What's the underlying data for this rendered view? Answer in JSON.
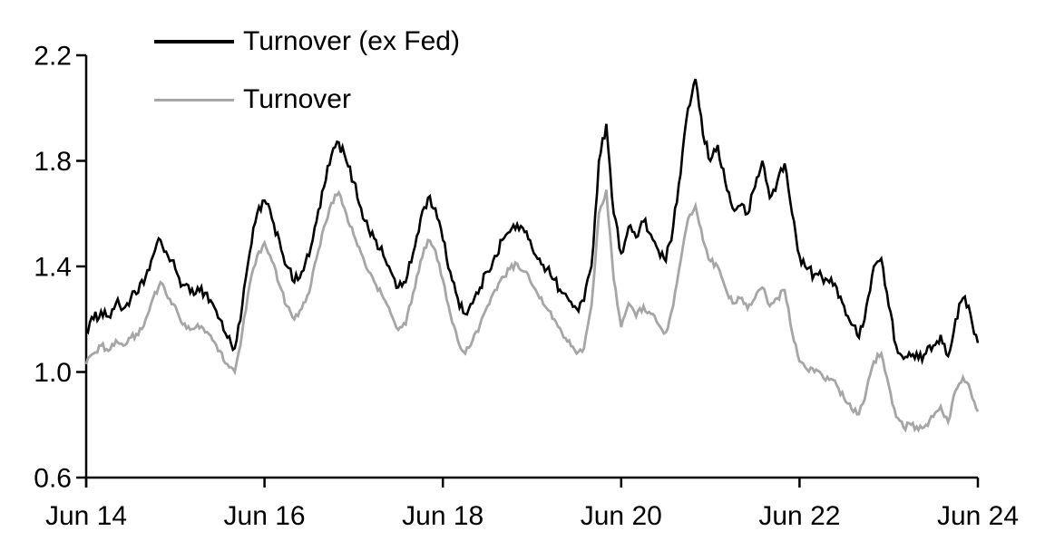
{
  "chart_data": {
    "type": "line",
    "title": "",
    "x_tick_labels": [
      "Jun 14",
      "Jun 16",
      "Jun 18",
      "Jun 20",
      "Jun 22",
      "Jun 24"
    ],
    "x_tick_month_index": [
      0,
      24,
      48,
      72,
      96,
      120
    ],
    "x_start": "Jun 2014",
    "x_end": "Jun 2024",
    "x_months_total": 120,
    "frequency": "monthly",
    "y_ticks": [
      0.6,
      1.0,
      1.4,
      1.8,
      2.2
    ],
    "ylim": [
      0.6,
      2.2
    ],
    "grid": false,
    "legend_position": "top-left-inside",
    "series": [
      {
        "name": "Turnover (ex Fed)",
        "color": "#000000",
        "stroke_width": 2.6,
        "jitter": 0.022,
        "monthly_values": [
          1.16,
          1.2,
          1.23,
          1.21,
          1.26,
          1.24,
          1.28,
          1.3,
          1.36,
          1.44,
          1.5,
          1.44,
          1.39,
          1.33,
          1.3,
          1.32,
          1.3,
          1.26,
          1.2,
          1.13,
          1.09,
          1.25,
          1.45,
          1.6,
          1.65,
          1.58,
          1.5,
          1.4,
          1.34,
          1.38,
          1.44,
          1.57,
          1.7,
          1.82,
          1.87,
          1.8,
          1.72,
          1.62,
          1.54,
          1.5,
          1.44,
          1.38,
          1.32,
          1.34,
          1.45,
          1.58,
          1.66,
          1.62,
          1.5,
          1.38,
          1.28,
          1.22,
          1.26,
          1.32,
          1.38,
          1.44,
          1.5,
          1.53,
          1.56,
          1.53,
          1.47,
          1.43,
          1.39,
          1.35,
          1.3,
          1.27,
          1.24,
          1.27,
          1.4,
          1.8,
          1.94,
          1.6,
          1.45,
          1.55,
          1.51,
          1.57,
          1.52,
          1.46,
          1.42,
          1.55,
          1.75,
          2.0,
          2.11,
          1.9,
          1.8,
          1.86,
          1.72,
          1.62,
          1.63,
          1.6,
          1.7,
          1.8,
          1.66,
          1.72,
          1.79,
          1.6,
          1.44,
          1.39,
          1.37,
          1.36,
          1.34,
          1.32,
          1.25,
          1.18,
          1.13,
          1.25,
          1.4,
          1.43,
          1.25,
          1.1,
          1.05,
          1.06,
          1.05,
          1.07,
          1.1,
          1.14,
          1.06,
          1.2,
          1.28,
          1.22,
          1.11
        ]
      },
      {
        "name": "Turnover",
        "color": "#a6a6a6",
        "stroke_width": 2.8,
        "jitter": 0.013,
        "monthly_values": [
          1.03,
          1.07,
          1.1,
          1.08,
          1.12,
          1.1,
          1.13,
          1.14,
          1.2,
          1.28,
          1.34,
          1.28,
          1.25,
          1.18,
          1.16,
          1.18,
          1.15,
          1.12,
          1.08,
          1.03,
          1.0,
          1.15,
          1.33,
          1.44,
          1.49,
          1.42,
          1.33,
          1.25,
          1.2,
          1.24,
          1.3,
          1.43,
          1.55,
          1.64,
          1.68,
          1.6,
          1.52,
          1.45,
          1.38,
          1.33,
          1.28,
          1.22,
          1.16,
          1.18,
          1.3,
          1.42,
          1.5,
          1.46,
          1.35,
          1.22,
          1.12,
          1.07,
          1.12,
          1.18,
          1.25,
          1.31,
          1.36,
          1.39,
          1.41,
          1.38,
          1.33,
          1.28,
          1.24,
          1.2,
          1.15,
          1.12,
          1.07,
          1.09,
          1.25,
          1.6,
          1.69,
          1.35,
          1.17,
          1.26,
          1.21,
          1.25,
          1.22,
          1.18,
          1.15,
          1.25,
          1.42,
          1.58,
          1.63,
          1.5,
          1.42,
          1.4,
          1.32,
          1.26,
          1.28,
          1.24,
          1.28,
          1.32,
          1.25,
          1.28,
          1.31,
          1.15,
          1.04,
          1.01,
          1.0,
          0.99,
          0.97,
          0.95,
          0.9,
          0.86,
          0.84,
          0.93,
          1.04,
          1.07,
          0.95,
          0.83,
          0.79,
          0.8,
          0.78,
          0.8,
          0.83,
          0.87,
          0.81,
          0.93,
          0.98,
          0.93,
          0.85
        ]
      }
    ]
  },
  "legend": {
    "items": [
      {
        "label": "Turnover (ex Fed)",
        "color": "#000000"
      },
      {
        "label": "Turnover",
        "color": "#a6a6a6"
      }
    ]
  },
  "colors": {
    "axis": "#000000",
    "background": "#ffffff",
    "text": "#000000"
  }
}
